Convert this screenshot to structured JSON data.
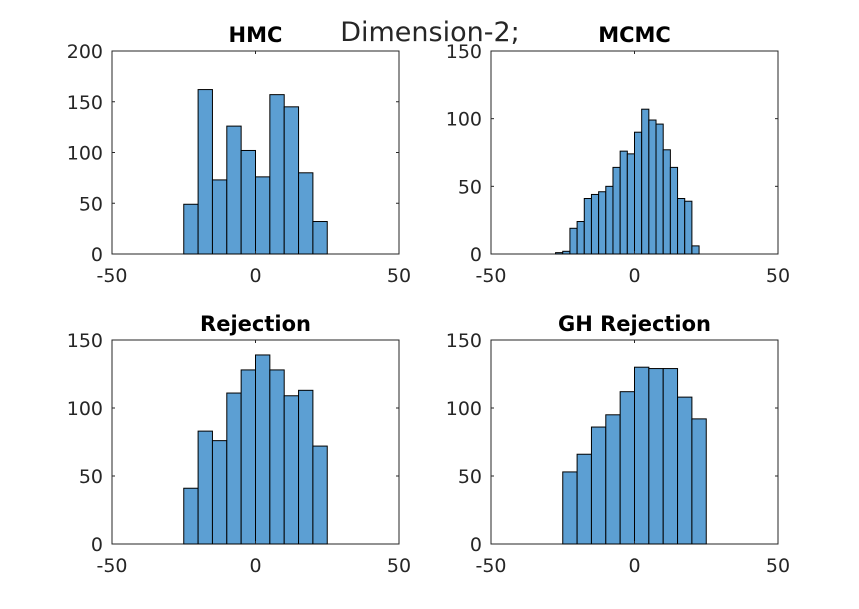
{
  "figure": {
    "suptitle": "Dimension-2;",
    "bar_color": "#5c9fd3",
    "axis_color": "#262626"
  },
  "chart_data": [
    {
      "type": "bar",
      "title": "HMC",
      "xlim": [
        -50,
        50
      ],
      "ylim": [
        0,
        200
      ],
      "xticks": [
        "-50",
        "0",
        "50"
      ],
      "yticks": [
        "0",
        "50",
        "100",
        "150",
        "200"
      ],
      "bin_edges": [
        -25,
        -20,
        -15,
        -10,
        -5,
        0,
        5,
        10,
        15,
        20,
        25
      ],
      "values": [
        49,
        162,
        73,
        126,
        102,
        76,
        157,
        145,
        80,
        32
      ]
    },
    {
      "type": "bar",
      "title": "MCMC",
      "xlim": [
        -50,
        50
      ],
      "ylim": [
        0,
        150
      ],
      "xticks": [
        "-50",
        "0",
        "50"
      ],
      "yticks": [
        "0",
        "50",
        "100",
        "150"
      ],
      "bin_edges": [
        -27.5,
        -25,
        -22.5,
        -20,
        -17.5,
        -15,
        -12.5,
        -10,
        -7.5,
        -5,
        -2.5,
        0,
        2.5,
        5,
        7.5,
        10,
        12.5,
        15,
        17.5,
        20,
        22.5,
        25,
        27.5
      ],
      "values": [
        1,
        2,
        19,
        24,
        41,
        44,
        46,
        50,
        64,
        76,
        74,
        90,
        107,
        99,
        96,
        77,
        64,
        41,
        39,
        6,
        0,
        0
      ]
    },
    {
      "type": "bar",
      "title": "Rejection",
      "xlim": [
        -50,
        50
      ],
      "ylim": [
        0,
        150
      ],
      "xticks": [
        "-50",
        "0",
        "50"
      ],
      "yticks": [
        "0",
        "50",
        "100",
        "150"
      ],
      "bin_edges": [
        -25,
        -20,
        -15,
        -10,
        -5,
        0,
        5,
        10,
        15,
        20,
        25
      ],
      "values": [
        41,
        83,
        76,
        111,
        128,
        139,
        128,
        109,
        113,
        72
      ]
    },
    {
      "type": "bar",
      "title": "GH Rejection",
      "xlim": [
        -50,
        50
      ],
      "ylim": [
        0,
        150
      ],
      "xticks": [
        "-50",
        "0",
        "50"
      ],
      "yticks": [
        "0",
        "50",
        "100",
        "150"
      ],
      "bin_edges": [
        -25,
        -20,
        -15,
        -10,
        -5,
        0,
        5,
        10,
        15,
        20,
        25
      ],
      "values": [
        53,
        66,
        86,
        95,
        112,
        130,
        129,
        129,
        108,
        92
      ]
    }
  ]
}
